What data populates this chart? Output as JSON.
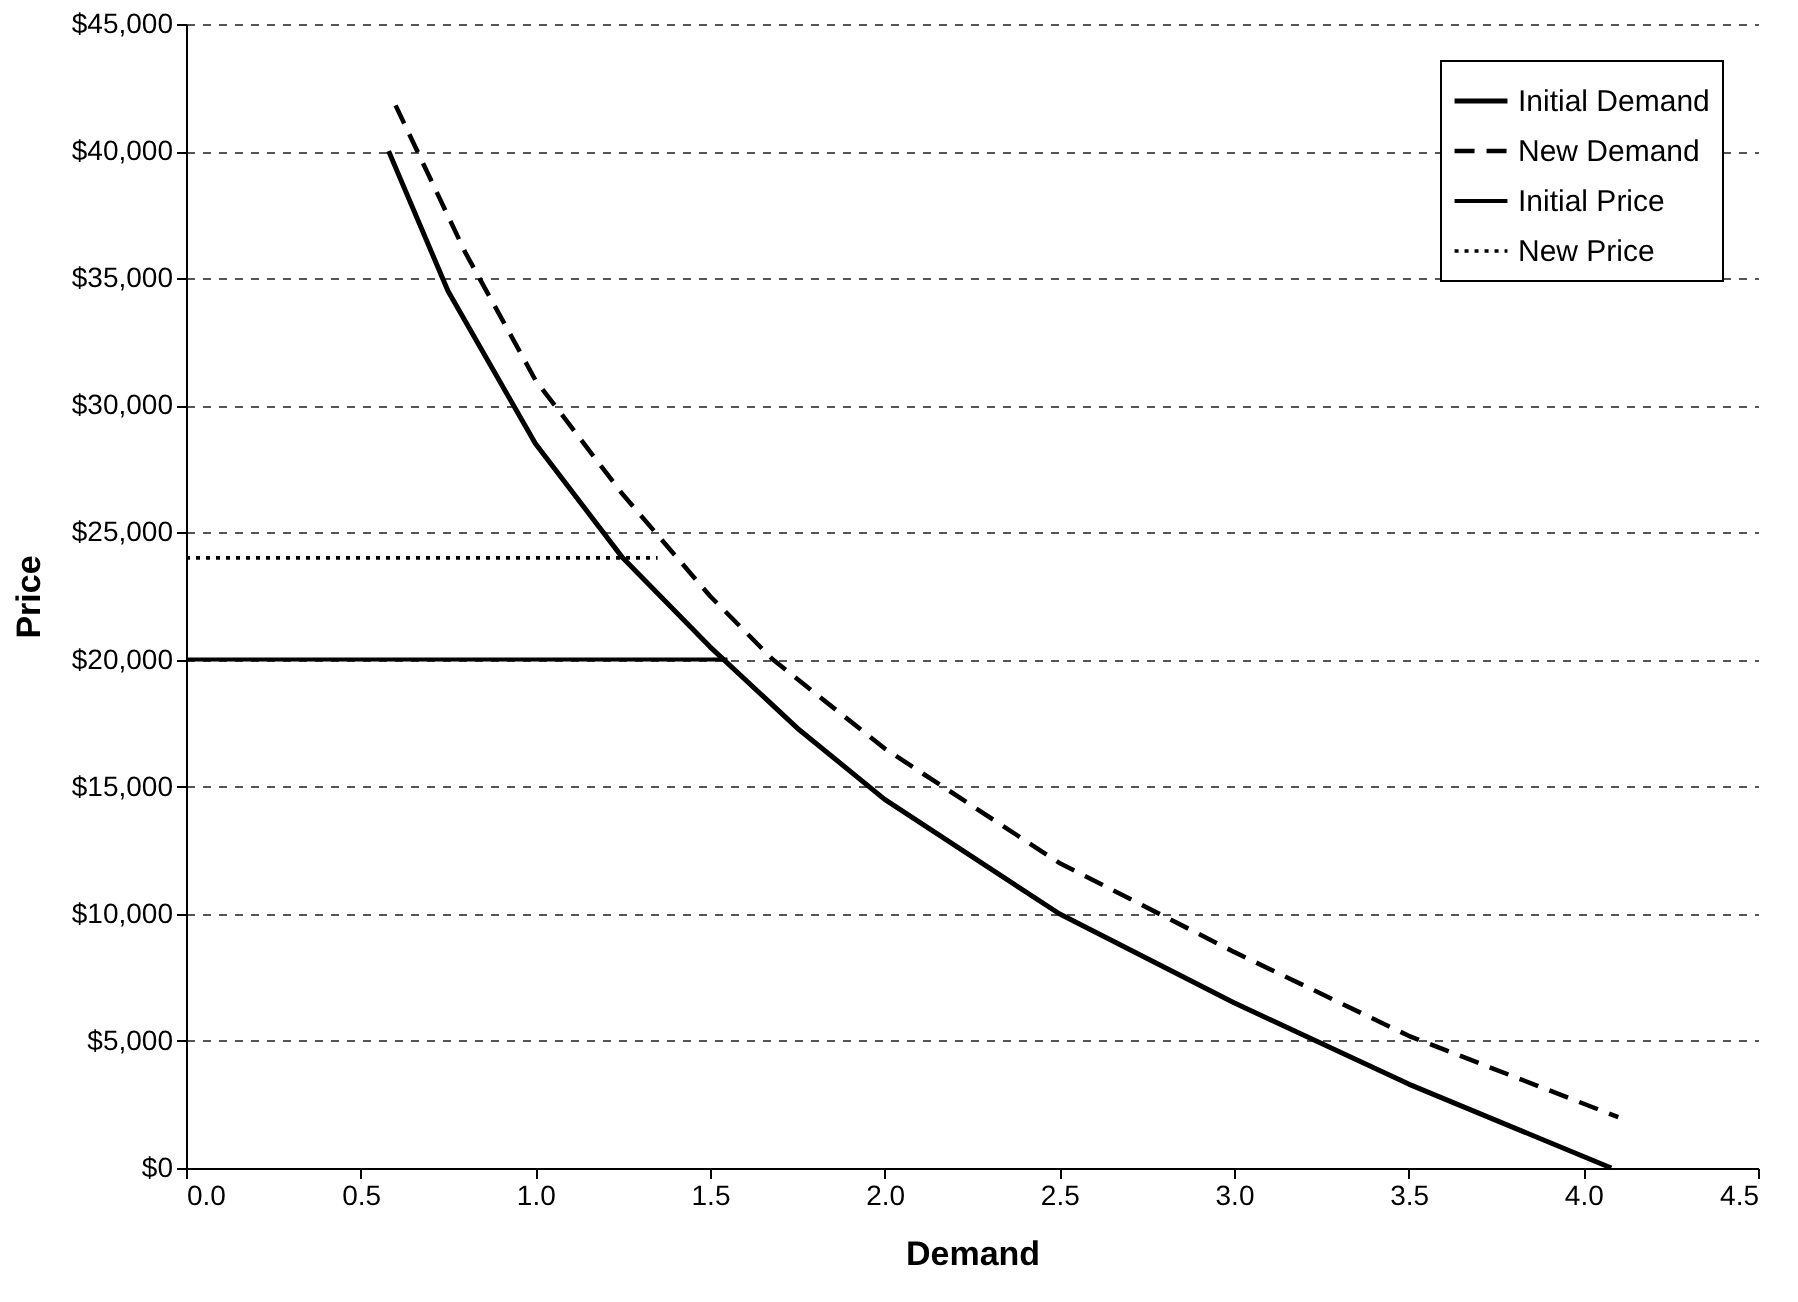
{
  "chart_data": {
    "type": "line",
    "xlabel": "Demand",
    "ylabel": "Price",
    "xlim": [
      0,
      4.5
    ],
    "ylim": [
      0,
      45000
    ],
    "xticks": [
      {
        "value": 0,
        "label": "0.0"
      },
      {
        "value": 0.5,
        "label": "0.5"
      },
      {
        "value": 1,
        "label": "1.0"
      },
      {
        "value": 1.5,
        "label": "1.5"
      },
      {
        "value": 2,
        "label": "2.0"
      },
      {
        "value": 2.5,
        "label": "2.5"
      },
      {
        "value": 3,
        "label": "3.0"
      },
      {
        "value": 3.5,
        "label": "3.5"
      },
      {
        "value": 4,
        "label": "4.0"
      },
      {
        "value": 4.5,
        "label": "4.5"
      }
    ],
    "yticks": [
      {
        "value": 0,
        "label": "$0"
      },
      {
        "value": 5000,
        "label": "$5,000"
      },
      {
        "value": 10000,
        "label": "$10,000"
      },
      {
        "value": 15000,
        "label": "$15,000"
      },
      {
        "value": 20000,
        "label": "$20,000"
      },
      {
        "value": 25000,
        "label": "$25,000"
      },
      {
        "value": 30000,
        "label": "$30,000"
      },
      {
        "value": 35000,
        "label": "$35,000"
      },
      {
        "value": 40000,
        "label": "$40,000"
      },
      {
        "value": 45000,
        "label": "$45,000"
      }
    ],
    "grid": "y",
    "legend": "top right",
    "marker": "none",
    "series": [
      {
        "name": "Initial Demand",
        "color": "#000000",
        "line_style": "solid",
        "x": [
          0.58,
          0.75,
          1.0,
          1.25,
          1.5,
          1.75,
          2.0,
          2.5,
          3.0,
          3.5,
          4.08
        ],
        "values": [
          40000,
          34500,
          28500,
          24000,
          20500,
          17300,
          14500,
          10000,
          6500,
          3300,
          0
        ]
      },
      {
        "name": "New Demand",
        "color": "#000000",
        "line_style": "dashed",
        "x": [
          0.6,
          0.8,
          1.0,
          1.25,
          1.5,
          1.68,
          2.0,
          2.5,
          3.0,
          3.5,
          4.1
        ],
        "values": [
          41800,
          36000,
          31000,
          26500,
          22500,
          20000,
          16500,
          12000,
          8500,
          5200,
          2000
        ]
      },
      {
        "name": "Initial Price",
        "color": "#000000",
        "line_style": "solid",
        "x": [
          0,
          1.55
        ],
        "values": [
          20000,
          20000
        ]
      },
      {
        "name": "New Price",
        "color": "#000000",
        "line_style": "dotted",
        "x": [
          0,
          1.35
        ],
        "values": [
          24000,
          24000
        ]
      }
    ]
  }
}
